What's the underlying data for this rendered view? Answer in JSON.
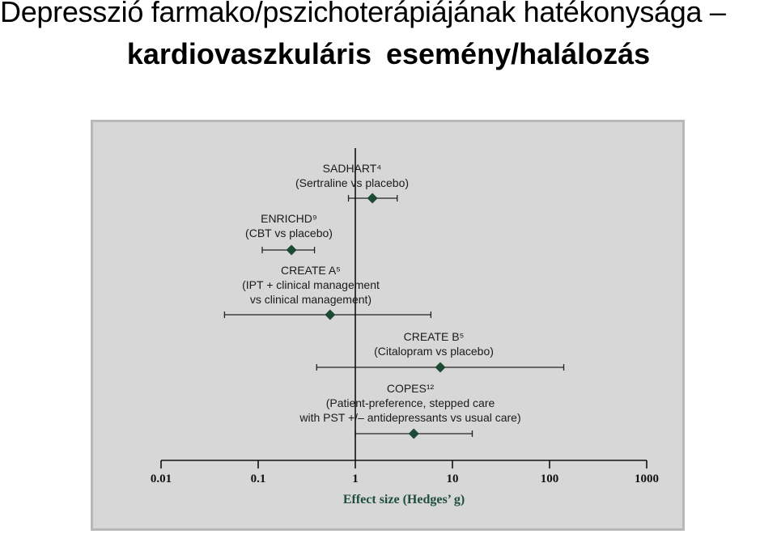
{
  "header": {
    "title_line1": "Depresszió farmako/pszichoterápiájának hatékonysága –",
    "title_line2": "kardiovaszkuláris  esemény/halálozás"
  },
  "colors": {
    "marker": "#1d4a35",
    "axis": "#111111",
    "panel": "#d7d7d7",
    "xlabel": "#1f4e3d"
  },
  "chart_data": {
    "type": "forest",
    "xlabel": "Effect size (Hedges’ g)",
    "xscale": "log",
    "xlim": [
      0.01,
      1000
    ],
    "xticks": [
      0.01,
      0.1,
      1,
      10,
      100,
      1000
    ],
    "xtick_labels": [
      "0.01",
      "0.1",
      "1",
      "10",
      "100",
      "1000"
    ],
    "reference_line": 1,
    "studies": [
      {
        "name": "SADHART⁴",
        "label_lines": [
          "SADHART⁴",
          "(Sertraline vs placebo)"
        ],
        "estimate": 1.5,
        "ci": [
          0.85,
          2.7
        ]
      },
      {
        "name": "ENRICHD⁹",
        "label_lines": [
          "ENRICHD⁹",
          "(CBT vs placebo)"
        ],
        "estimate": 0.22,
        "ci": [
          0.11,
          0.38
        ]
      },
      {
        "name": "CREATE A⁵",
        "label_lines": [
          "CREATE A⁵",
          "(IPT + clinical management",
          "vs clinical management)"
        ],
        "estimate": 0.55,
        "ci": [
          0.045,
          6.0
        ]
      },
      {
        "name": "CREATE B⁵",
        "label_lines": [
          "CREATE B⁵",
          "(Citalopram vs placebo)"
        ],
        "estimate": 7.5,
        "ci": [
          0.4,
          140
        ]
      },
      {
        "name": "COPES¹²",
        "label_lines": [
          "COPES¹²",
          "(Patient-preference, stepped care",
          "with PST +/– antidepressants vs usual care)"
        ],
        "estimate": 4.0,
        "ci": [
          1.0,
          16
        ]
      }
    ]
  }
}
